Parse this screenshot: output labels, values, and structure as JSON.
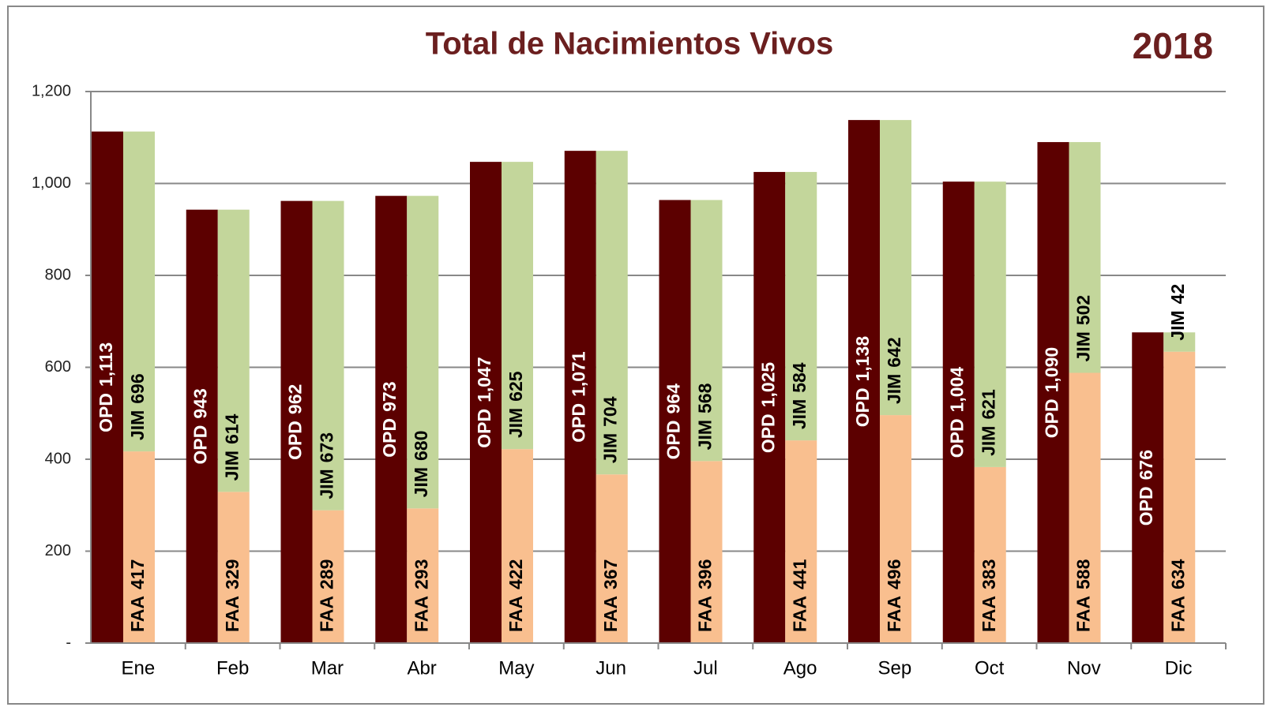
{
  "chart_data": {
    "type": "bar",
    "title": "Total de Nacimientos Vivos",
    "subtitle": "2018",
    "categories": [
      "Ene",
      "Feb",
      "Mar",
      "Abr",
      "May",
      "Jun",
      "Jul",
      "Ago",
      "Sep",
      "Oct",
      "Nov",
      "Dic"
    ],
    "series": [
      {
        "name": "OPD",
        "color": "#5c0000",
        "values": [
          1113,
          943,
          962,
          973,
          1047,
          1071,
          964,
          1025,
          1138,
          1004,
          1090,
          676
        ],
        "value_labels": [
          "1,113",
          "943",
          "962",
          "973",
          "1,047",
          "1,071",
          "964",
          "1,025",
          "1,138",
          "1,004",
          "1,090",
          "676"
        ]
      },
      {
        "name": "FAA",
        "color": "#f9bf8f",
        "values": [
          417,
          329,
          289,
          293,
          422,
          367,
          396,
          441,
          496,
          383,
          588,
          634
        ],
        "value_labels": [
          "417",
          "329",
          "289",
          "293",
          "422",
          "367",
          "396",
          "441",
          "496",
          "383",
          "588",
          "634"
        ]
      },
      {
        "name": "JIM",
        "color": "#c3d69b",
        "values": [
          696,
          614,
          673,
          680,
          625,
          704,
          568,
          584,
          642,
          621,
          502,
          42
        ],
        "value_labels": [
          "696",
          "614",
          "673",
          "680",
          "625",
          "704",
          "568",
          "584",
          "642",
          "621",
          "502",
          "42"
        ]
      }
    ],
    "ylim": [
      0,
      1200
    ],
    "yticks": [
      {
        "value": 0,
        "label": "-"
      },
      200,
      400,
      600,
      800,
      {
        "value": 1000,
        "label": "1,000"
      },
      {
        "value": 1200,
        "label": "1,200"
      }
    ],
    "grid": true
  }
}
